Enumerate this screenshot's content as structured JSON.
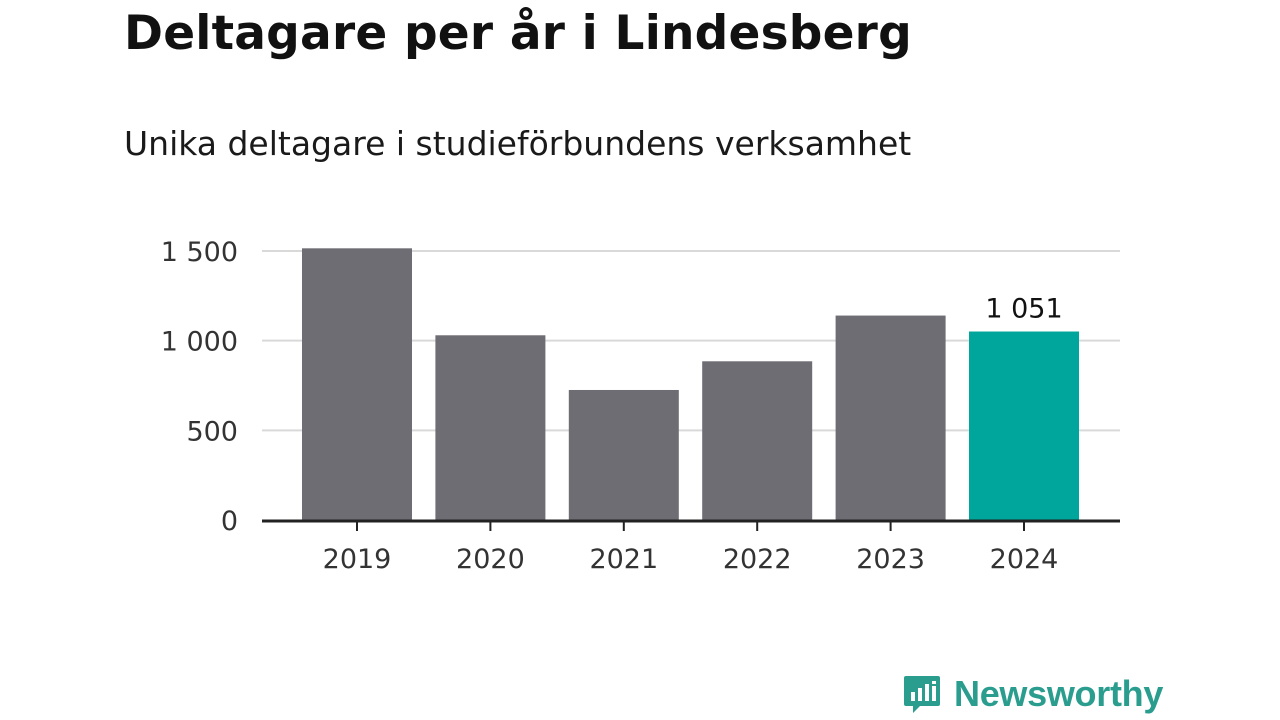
{
  "header": {
    "title": "Deltagare per år i Lindesberg",
    "subtitle": "Unika deltagare i studieförbundens verksamhet"
  },
  "chart_data": {
    "type": "bar",
    "title": "Deltagare per år i Lindesberg",
    "subtitle": "Unika deltagare i studieförbundens verksamhet",
    "categories": [
      "2019",
      "2020",
      "2021",
      "2022",
      "2023",
      "2024"
    ],
    "values": [
      1515,
      1030,
      725,
      885,
      1140,
      1051
    ],
    "highlight_index": 5,
    "data_labels": [
      {
        "index": 5,
        "text": "1 051"
      }
    ],
    "ylim": [
      0,
      1500
    ],
    "yticks": [
      0,
      500,
      1000,
      1500
    ],
    "ytick_labels": [
      "0",
      "500",
      "1 000",
      "1 500"
    ],
    "xlabel": "",
    "ylabel": "",
    "grid": true,
    "colors": {
      "bar": "#6e6d73",
      "highlight": "#00a59b",
      "grid": "#d9d9d9",
      "axis": "#222222"
    }
  },
  "brand": {
    "name": "Newsworthy",
    "icon": "newsworthy-logo-icon",
    "color": "#2a9d8f"
  }
}
